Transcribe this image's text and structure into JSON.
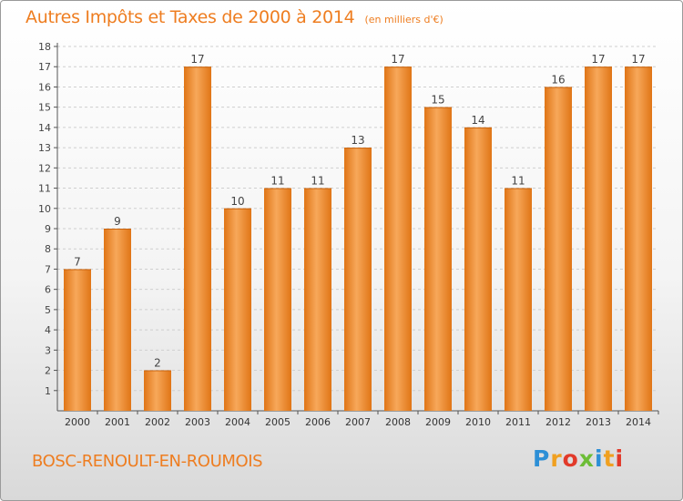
{
  "header": {
    "title": "Autres Impôts et Taxes de 2000 à 2014",
    "unit": "(en milliers d'€)"
  },
  "footer": {
    "commune": "BOSC-RENOULT-EN-ROUMOIS",
    "brand": "Proxiti"
  },
  "colors": {
    "accent": "#ee7d20",
    "bar_light": "#f7a85a",
    "bar_dark": "#e07516"
  },
  "chart_data": {
    "type": "bar",
    "title": "Autres Impôts et Taxes de 2000 à 2014",
    "subtitle": "(en milliers d'€)",
    "xlabel": "",
    "ylabel": "",
    "categories": [
      "2000",
      "2001",
      "2002",
      "2003",
      "2004",
      "2005",
      "2006",
      "2007",
      "2008",
      "2009",
      "2010",
      "2011",
      "2012",
      "2013",
      "2014"
    ],
    "values": [
      7,
      9,
      2,
      17,
      10,
      11,
      11,
      13,
      17,
      15,
      14,
      11,
      16,
      17,
      17
    ],
    "ylim": [
      0,
      18
    ],
    "yticks": [
      1,
      2,
      3,
      4,
      5,
      6,
      7,
      8,
      9,
      10,
      11,
      12,
      13,
      14,
      15,
      16,
      17,
      18
    ],
    "grid": true,
    "legend": "none"
  }
}
